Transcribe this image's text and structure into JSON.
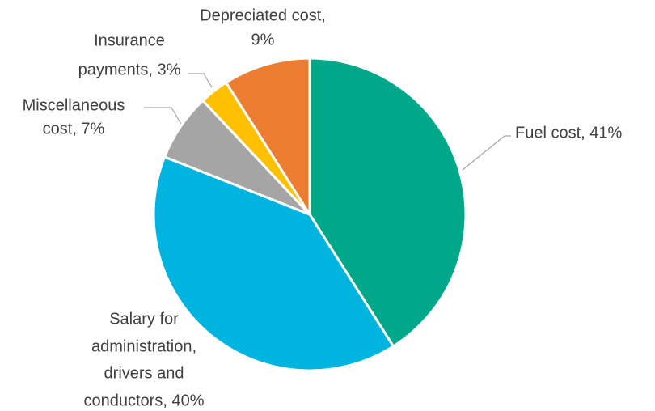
{
  "chart_data": {
    "type": "pie",
    "labels": [
      [
        "Fuel cost, 41%"
      ],
      [
        "Salary for",
        "administration,",
        "drivers and",
        "conductors, 40%"
      ],
      [
        "Miscellaneous",
        "cost, 7%"
      ],
      [
        "Insurance",
        "payments, 3%"
      ],
      [
        "Depreciated cost,",
        "9%"
      ]
    ],
    "values": [
      41,
      40,
      7,
      3,
      9
    ],
    "colors": [
      "#00a88a",
      "#00b4e0",
      "#a5a5a5",
      "#ffc000",
      "#ed7d31"
    ]
  }
}
